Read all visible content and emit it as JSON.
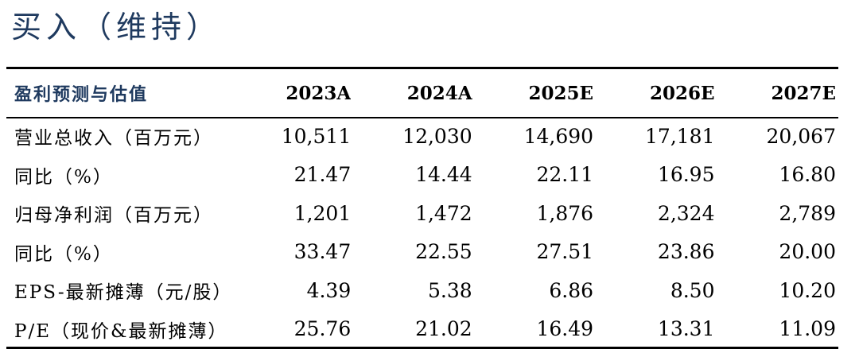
{
  "rating": "买入（维持）",
  "table": {
    "header_label": "盈利预测与估值",
    "years": [
      "2023A",
      "2024A",
      "2025E",
      "2026E",
      "2027E"
    ],
    "rows": [
      {
        "label": "营业总收入（百万元）",
        "values": [
          "10,511",
          "12,030",
          "14,690",
          "17,181",
          "20,067"
        ]
      },
      {
        "label": "同比（%）",
        "values": [
          "21.47",
          "14.44",
          "22.11",
          "16.95",
          "16.80"
        ]
      },
      {
        "label": "归母净利润（百万元）",
        "values": [
          "1,201",
          "1,472",
          "1,876",
          "2,324",
          "2,789"
        ]
      },
      {
        "label": "同比（%）",
        "values": [
          "33.47",
          "22.55",
          "27.51",
          "23.86",
          "20.00"
        ]
      },
      {
        "label": "EPS-最新摊薄（元/股）",
        "values": [
          "4.39",
          "5.38",
          "6.86",
          "8.50",
          "10.20"
        ]
      },
      {
        "label": "P/E（现价&最新摊薄）",
        "values": [
          "25.76",
          "21.02",
          "16.49",
          "13.31",
          "11.09"
        ]
      }
    ]
  },
  "colors": {
    "header_blue": "#1f3a5f",
    "rule": "#000000"
  }
}
